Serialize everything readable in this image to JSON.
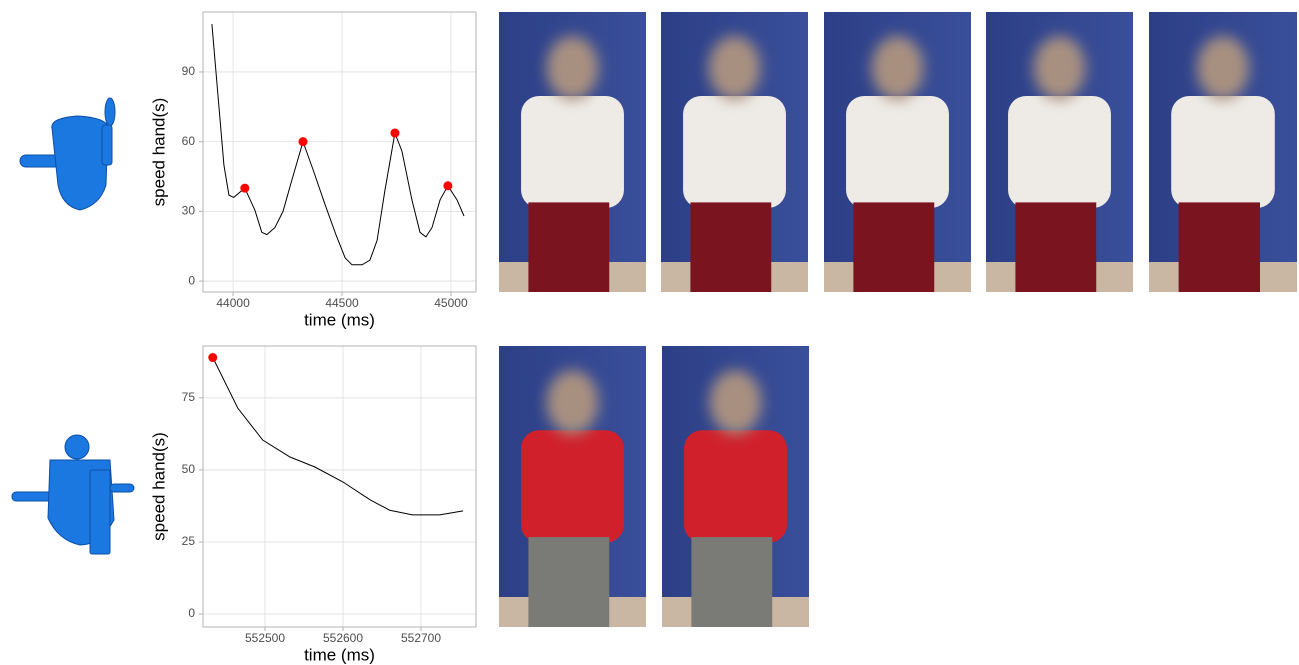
{
  "chart_data": [
    {
      "type": "line",
      "x_label": "time (ms)",
      "y_label": "speed hand(s)",
      "x": [
        43903,
        43958,
        43981,
        44003,
        44054,
        44100,
        44132,
        44155,
        44192,
        44229,
        44270,
        44321,
        44367,
        44422,
        44472,
        44514,
        44546,
        44592,
        44628,
        44661,
        44697,
        44743,
        44775,
        44821,
        44858,
        44885,
        44913,
        44950,
        44986,
        45028,
        45060
      ],
      "values": [
        110.6,
        50,
        37,
        36,
        40,
        30.5,
        21,
        20,
        23,
        30,
        43.5,
        60,
        48,
        33,
        20,
        10,
        7,
        7,
        9,
        17.5,
        39,
        63.7,
        56,
        35,
        21,
        19,
        23,
        35,
        41,
        35,
        28
      ],
      "color": "#000000",
      "peaks": {
        "x": [
          44054,
          44321,
          44743,
          44986
        ],
        "values": [
          40,
          60,
          63.7,
          41
        ],
        "color": "#ff0000"
      },
      "xlim": [
        43862,
        45115
      ],
      "ylim": [
        -4.7,
        115.8
      ],
      "xticks": [
        44000,
        44500,
        45000
      ],
      "yticks": [
        0,
        30,
        60,
        90
      ],
      "grid": true
    },
    {
      "type": "line",
      "x_label": "time (ms)",
      "y_label": "speed hand(s)",
      "x": [
        552433,
        552465,
        552497,
        552532,
        552564,
        552600,
        552635,
        552660,
        552689,
        552724,
        552754
      ],
      "values": [
        89,
        71.5,
        60.4,
        54.5,
        51,
        45.8,
        39.6,
        36,
        34.4,
        34.4,
        35.8
      ],
      "color": "#000000",
      "peaks": {
        "x": [
          552433
        ],
        "values": [
          89
        ],
        "color": "#ff0000"
      },
      "xlim": [
        552420.5,
        552770.5
      ],
      "ylim": [
        -4.5,
        93
      ],
      "xticks": [
        552500,
        552600,
        552700
      ],
      "yticks": [
        0,
        25,
        50,
        75
      ],
      "grid": true
    }
  ]
}
